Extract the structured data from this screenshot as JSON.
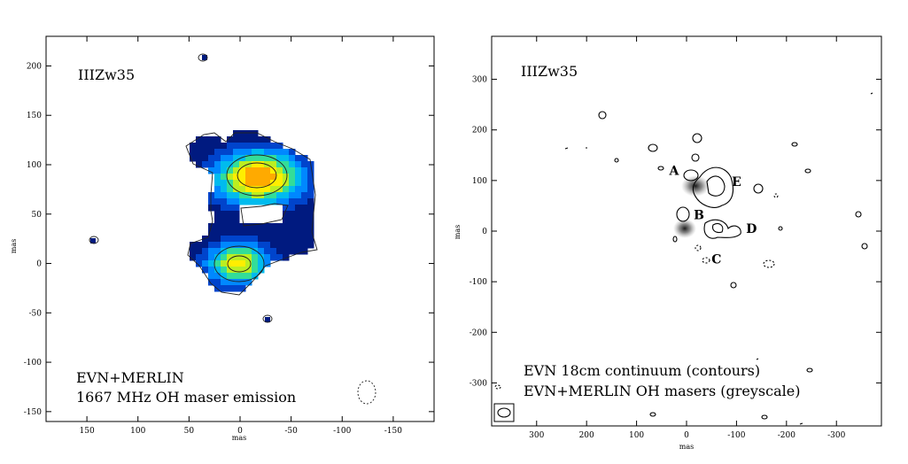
{
  "chart_data": [
    {
      "type": "heatmap",
      "name": "oh-maser-map",
      "xlabel": "mas",
      "ylabel": "mas",
      "xlim": [
        190,
        -190
      ],
      "ylim": [
        -160,
        230
      ],
      "xticks": [
        150,
        100,
        50,
        0,
        -50,
        -100,
        -150
      ],
      "yticks": [
        200,
        150,
        100,
        50,
        0,
        -50,
        -100,
        -150
      ],
      "xtick_labels": [
        "150",
        "100",
        "50",
        "0",
        "-50",
        "-100",
        "-150"
      ],
      "ytick_labels": [
        "200",
        "150",
        "100",
        "50",
        "0",
        "-50",
        "-100",
        "-150"
      ],
      "annotations": [
        "IIIZw35",
        "EVN+MERLIN",
        "1667 MHz OH maser emission"
      ],
      "colormap": [
        "#001a80",
        "#0044cc",
        "#0088ff",
        "#00bbee",
        "#33dd99",
        "#bbee22",
        "#ffee00",
        "#ffaa00"
      ],
      "peaks": [
        {
          "x": -18,
          "y": 87,
          "amplitude": 1.0,
          "sx": 22,
          "sy": 14
        },
        {
          "x": 2,
          "y": 0,
          "amplitude": 0.82,
          "sx": 16,
          "sy": 11
        }
      ]
    },
    {
      "type": "heatmap",
      "name": "continuum-map",
      "xlabel": "mas",
      "ylabel": "mas",
      "xlim": [
        390,
        -390
      ],
      "ylim": [
        -385,
        385
      ],
      "xticks": [
        300,
        200,
        100,
        0,
        -100,
        -200,
        -300
      ],
      "yticks": [
        300,
        200,
        100,
        0,
        -100,
        -200,
        -300
      ],
      "xtick_labels": [
        "300",
        "200",
        "100",
        "0",
        "-100",
        "-200",
        "-300"
      ],
      "ytick_labels": [
        "300",
        "200",
        "100",
        "0",
        "-100",
        "-200",
        "-300"
      ],
      "annotations": [
        "IIIZw35",
        "EVN 18cm continuum (contours)",
        "EVN+MERLIN OH masers (greyscale)"
      ],
      "components": [
        {
          "label": "A",
          "x": 25,
          "y": 120
        },
        {
          "label": "E",
          "x": -100,
          "y": 98
        },
        {
          "label": "B",
          "x": -25,
          "y": 32
        },
        {
          "label": "D",
          "x": -130,
          "y": 5
        },
        {
          "label": "C",
          "x": -60,
          "y": -55
        }
      ],
      "greyscale_peaks": [
        {
          "x": -18,
          "y": 87,
          "amplitude": 1.0
        },
        {
          "x": 2,
          "y": 0,
          "amplitude": 0.8
        }
      ]
    }
  ]
}
